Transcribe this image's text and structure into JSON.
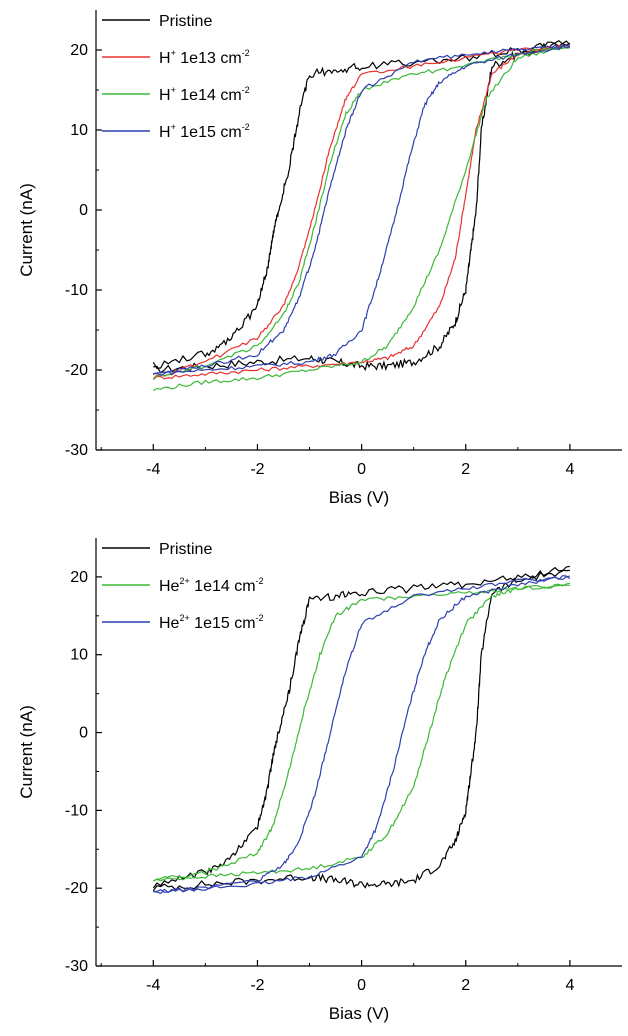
{
  "chart_data": [
    {
      "type": "line",
      "xlabel": "Bias (V)",
      "ylabel": "Current (nA)",
      "xlim": [
        -5.1,
        5
      ],
      "ylim": [
        -30,
        25
      ],
      "xticks": [
        -4,
        -2,
        0,
        2,
        4
      ],
      "yticks": [
        20,
        10,
        0,
        -10,
        -20,
        -30
      ],
      "xtick_labels": [
        "-4",
        "-2",
        "0",
        "2",
        "4"
      ],
      "ytick_labels": [
        "20",
        "10",
        "0",
        "-10",
        "-20",
        "-30"
      ],
      "legend_position": "top-left",
      "series": [
        {
          "name": "Pristine",
          "base": "Pristine",
          "sup": "",
          "suffix": "",
          "unit_sup": "",
          "color": "#000000",
          "forward": {
            "x": [
              -4,
              -3,
              -2,
              -1,
              -0.5,
              0,
              0.5,
              1,
              1.5,
              1.8,
              2.0,
              2.1,
              2.2,
              2.3,
              2.5,
              3,
              4
            ],
            "y": [
              -20,
              -19.5,
              -19,
              -18.5,
              -19,
              -19.5,
              -19.5,
              -19,
              -17,
              -14,
              -10,
              -5,
              0,
              10,
              18,
              19.5,
              21
            ]
          },
          "backward": {
            "x": [
              4,
              3,
              2,
              1,
              0,
              -0.5,
              -1,
              -1.2,
              -1.4,
              -1.6,
              -1.7,
              -1.8,
              -2,
              -2.5,
              -3,
              -4
            ],
            "y": [
              21,
              20,
              19,
              18.5,
              18,
              17.5,
              17,
              12,
              5,
              0,
              -3,
              -7,
              -12,
              -16,
              -18,
              -19.5
            ]
          }
        },
        {
          "name": "H+ 1e13 cm-2",
          "base": "H",
          "sup": "+",
          "suffix": " 1e13 cm",
          "unit_sup": "-2",
          "color": "#e8322f",
          "forward": {
            "x": [
              -4,
              -3,
              -2,
              -1,
              0,
              0.5,
              1,
              1.5,
              1.8,
              2.0,
              2.2,
              2.5,
              3,
              4
            ],
            "y": [
              -21,
              -20.5,
              -20,
              -19.5,
              -19,
              -18.5,
              -17,
              -12,
              -6,
              2,
              10,
              17,
              19.5,
              20.5
            ]
          },
          "backward": {
            "x": [
              4,
              3,
              2,
              1,
              0,
              -0.3,
              -0.6,
              -0.9,
              -1.2,
              -1.5,
              -2,
              -3,
              -4
            ],
            "y": [
              20.5,
              20,
              19,
              18,
              17,
              14,
              8,
              0,
              -7,
              -12,
              -16,
              -19,
              -21
            ]
          }
        },
        {
          "name": "H+ 1e14 cm-2",
          "base": "H",
          "sup": "+",
          "suffix": " 1e14 cm",
          "unit_sup": "-2",
          "color": "#3db838",
          "forward": {
            "x": [
              -4,
              -3,
              -2,
              -1,
              0,
              0.5,
              1,
              1.5,
              2,
              2.4,
              3,
              4
            ],
            "y": [
              -22.5,
              -21.5,
              -21,
              -20,
              -19,
              -17,
              -12,
              -5,
              5,
              14,
              19,
              20.5
            ]
          },
          "backward": {
            "x": [
              4,
              3,
              2,
              1,
              0,
              -0.3,
              -0.6,
              -0.9,
              -1.2,
              -1.5,
              -2,
              -3,
              -4
            ],
            "y": [
              20.5,
              19.5,
              18,
              17,
              15,
              12,
              6,
              -2,
              -9,
              -13,
              -17,
              -19.5,
              -21
            ]
          }
        },
        {
          "name": "H+ 1e15 cm-2",
          "base": "H",
          "sup": "+",
          "suffix": " 1e15 cm",
          "unit_sup": "-2",
          "color": "#2e3fb0",
          "forward": {
            "x": [
              -4,
              -3,
              -2,
              -1,
              -0.5,
              0,
              0.3,
              0.6,
              0.9,
              1.2,
              1.5,
              2,
              3,
              4
            ],
            "y": [
              -20.5,
              -20,
              -19.5,
              -19,
              -18,
              -15,
              -9,
              -2,
              6,
              13,
              16,
              18,
              19.5,
              20.5
            ]
          },
          "backward": {
            "x": [
              4,
              3,
              2,
              1,
              0,
              -0.3,
              -0.6,
              -0.9,
              -1.2,
              -1.5,
              -2,
              -3,
              -4
            ],
            "y": [
              20.5,
              20,
              19.5,
              18.5,
              15,
              10,
              3,
              -5,
              -11,
              -15,
              -18,
              -19.5,
              -20.5
            ]
          }
        }
      ]
    },
    {
      "type": "line",
      "xlabel": "Bias (V)",
      "ylabel": "Current (nA)",
      "xlim": [
        -5.1,
        5
      ],
      "ylim": [
        -30,
        25
      ],
      "xticks": [
        -4,
        -2,
        0,
        2,
        4
      ],
      "yticks": [
        20,
        10,
        0,
        -10,
        -20,
        -30
      ],
      "xtick_labels": [
        "-4",
        "-2",
        "0",
        "2",
        "4"
      ],
      "ytick_labels": [
        "20",
        "10",
        "0",
        "-10",
        "-20",
        "-30"
      ],
      "legend_position": "top-left",
      "series": [
        {
          "name": "Pristine",
          "base": "Pristine",
          "sup": "",
          "suffix": "",
          "unit_sup": "",
          "color": "#000000",
          "forward": {
            "x": [
              -4,
              -3,
              -2,
              -1,
              -0.5,
              0,
              0.5,
              1,
              1.5,
              1.8,
              2.0,
              2.1,
              2.2,
              2.3,
              2.5,
              3,
              4
            ],
            "y": [
              -20,
              -19.5,
              -19,
              -18.5,
              -19,
              -19.5,
              -19.5,
              -19,
              -17,
              -14,
              -10,
              -5,
              0,
              10,
              18,
              19.5,
              21
            ]
          },
          "backward": {
            "x": [
              4,
              3,
              2,
              1,
              0,
              -0.5,
              -1,
              -1.2,
              -1.4,
              -1.6,
              -1.7,
              -1.8,
              -2,
              -2.5,
              -3,
              -4
            ],
            "y": [
              21,
              20,
              19,
              18.5,
              18,
              17.5,
              17,
              12,
              5,
              0,
              -3,
              -7,
              -12,
              -16,
              -18,
              -19.5
            ]
          }
        },
        {
          "name": "He2+ 1e14 cm-2",
          "base": "He",
          "sup": "2+",
          "suffix": " 1e14 cm",
          "unit_sup": "-2",
          "color": "#3db838",
          "forward": {
            "x": [
              -4,
              -3,
              -2,
              -1,
              0,
              0.5,
              1,
              1.3,
              1.6,
              2,
              2.5,
              3,
              4
            ],
            "y": [
              -19,
              -18.5,
              -18,
              -17.5,
              -16,
              -13,
              -7,
              0,
              7,
              14,
              17.5,
              18.5,
              19
            ]
          },
          "backward": {
            "x": [
              4,
              3,
              2,
              1,
              0,
              -0.5,
              -0.8,
              -1.1,
              -1.4,
              -1.7,
              -2,
              -3,
              -4
            ],
            "y": [
              19,
              18.5,
              18,
              17.5,
              17,
              15,
              10,
              3,
              -5,
              -12,
              -15.5,
              -18,
              -19
            ]
          }
        },
        {
          "name": "He2+ 1e15 cm-2",
          "base": "He",
          "sup": "2+",
          "suffix": " 1e15 cm",
          "unit_sup": "-2",
          "color": "#2e3fb0",
          "forward": {
            "x": [
              -4,
              -3,
              -2,
              -1,
              0,
              0.3,
              0.6,
              0.9,
              1.2,
              1.5,
              2,
              3,
              4
            ],
            "y": [
              -20.5,
              -20,
              -19.5,
              -18.5,
              -16,
              -12,
              -5,
              3,
              10,
              14.5,
              17.5,
              19,
              20
            ]
          },
          "backward": {
            "x": [
              4,
              3,
              2,
              1,
              0,
              -0.3,
              -0.6,
              -0.9,
              -1.2,
              -1.5,
              -2,
              -3,
              -4
            ],
            "y": [
              20,
              19.5,
              18.5,
              17.5,
              14,
              8,
              0,
              -8,
              -14,
              -17,
              -19,
              -20,
              -20.5
            ]
          }
        }
      ]
    }
  ]
}
